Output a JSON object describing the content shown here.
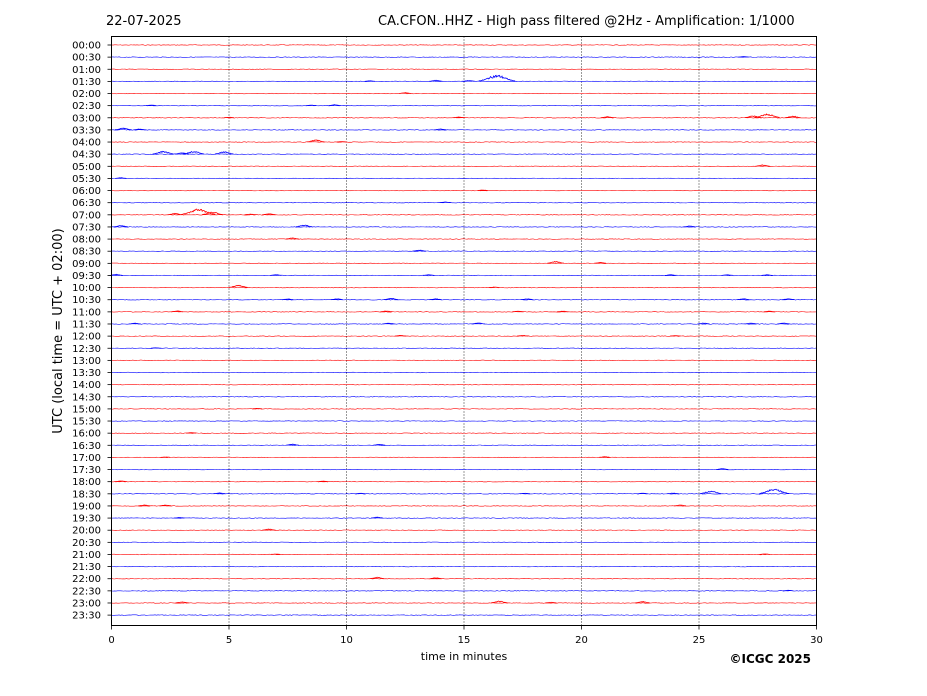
{
  "header": {
    "date": "22-07-2025",
    "title": "CA.CFON..HHZ - High pass filtered @2Hz - Amplification: 1/1000"
  },
  "footer": {
    "copyright": "©ICGC 2025"
  },
  "chart_data": {
    "type": "line",
    "title": "CA.CFON..HHZ - High pass filtered @2Hz - Amplification: 1/1000",
    "xlabel": "time in minutes",
    "ylabel": "UTC (local time = UTC + 02:00)",
    "xlim": [
      0,
      30
    ],
    "x_ticks": [
      0,
      5,
      10,
      15,
      20,
      25,
      30
    ],
    "grid": "vertical dotted at each 5 minutes",
    "colors": {
      "red": "#ff0000",
      "blue": "#0000ff"
    },
    "rows": [
      {
        "label": "00:00",
        "color": "red",
        "events": []
      },
      {
        "label": "00:30",
        "color": "blue",
        "events": [
          {
            "t": 26.9,
            "amp": 0.6
          }
        ]
      },
      {
        "label": "01:00",
        "color": "red",
        "events": []
      },
      {
        "label": "01:30",
        "color": "blue",
        "events": [
          {
            "t": 13.8,
            "amp": 1.2
          },
          {
            "t": 15.2,
            "amp": 1.0
          },
          {
            "t": 16.4,
            "amp": 6.5
          },
          {
            "t": 11.0,
            "amp": 0.6
          }
        ]
      },
      {
        "label": "02:00",
        "color": "red",
        "events": [
          {
            "t": 12.5,
            "amp": 1.0
          }
        ]
      },
      {
        "label": "02:30",
        "color": "blue",
        "events": [
          {
            "t": 1.7,
            "amp": 0.6
          },
          {
            "t": 8.5,
            "amp": 0.6
          },
          {
            "t": 9.5,
            "amp": 1.0
          }
        ]
      },
      {
        "label": "03:00",
        "color": "red",
        "events": [
          {
            "t": 5.0,
            "amp": 0.6
          },
          {
            "t": 14.8,
            "amp": 0.8
          },
          {
            "t": 21.1,
            "amp": 1.2
          },
          {
            "t": 27.3,
            "amp": 2.0
          },
          {
            "t": 27.9,
            "amp": 4.0
          },
          {
            "t": 29.0,
            "amp": 1.8
          }
        ]
      },
      {
        "label": "03:30",
        "color": "blue",
        "events": [
          {
            "t": 0.5,
            "amp": 2.0
          },
          {
            "t": 1.2,
            "amp": 1.0
          },
          {
            "t": 14.0,
            "amp": 1.0
          }
        ]
      },
      {
        "label": "04:00",
        "color": "red",
        "events": [
          {
            "t": 8.7,
            "amp": 2.2
          },
          {
            "t": 9.8,
            "amp": 0.6
          }
        ]
      },
      {
        "label": "04:30",
        "color": "blue",
        "events": [
          {
            "t": 2.2,
            "amp": 3.0
          },
          {
            "t": 3.0,
            "amp": 1.5
          },
          {
            "t": 3.5,
            "amp": 3.0
          },
          {
            "t": 4.8,
            "amp": 2.5
          }
        ]
      },
      {
        "label": "05:00",
        "color": "red",
        "events": [
          {
            "t": 27.7,
            "amp": 1.5
          }
        ]
      },
      {
        "label": "05:30",
        "color": "blue",
        "events": [
          {
            "t": 0.4,
            "amp": 0.8
          }
        ]
      },
      {
        "label": "06:00",
        "color": "red",
        "events": [
          {
            "t": 15.8,
            "amp": 0.6
          }
        ]
      },
      {
        "label": "06:30",
        "color": "blue",
        "events": [
          {
            "t": 14.2,
            "amp": 0.8
          }
        ]
      },
      {
        "label": "07:00",
        "color": "red",
        "events": [
          {
            "t": 2.7,
            "amp": 1.5
          },
          {
            "t": 3.7,
            "amp": 6.0
          },
          {
            "t": 4.3,
            "amp": 3.0
          },
          {
            "t": 6.7,
            "amp": 1.2
          },
          {
            "t": 5.9,
            "amp": 0.8
          }
        ]
      },
      {
        "label": "07:30",
        "color": "blue",
        "events": [
          {
            "t": 0.4,
            "amp": 1.5
          },
          {
            "t": 8.2,
            "amp": 2.0
          },
          {
            "t": 24.6,
            "amp": 1.0
          }
        ]
      },
      {
        "label": "08:00",
        "color": "red",
        "events": [
          {
            "t": 7.7,
            "amp": 1.2
          }
        ]
      },
      {
        "label": "08:30",
        "color": "blue",
        "events": [
          {
            "t": 13.1,
            "amp": 1.2
          }
        ]
      },
      {
        "label": "09:00",
        "color": "red",
        "events": [
          {
            "t": 18.9,
            "amp": 2.0
          },
          {
            "t": 20.8,
            "amp": 1.0
          }
        ]
      },
      {
        "label": "09:30",
        "color": "blue",
        "events": [
          {
            "t": 0.2,
            "amp": 1.2
          },
          {
            "t": 7.0,
            "amp": 0.8
          },
          {
            "t": 13.5,
            "amp": 0.8
          },
          {
            "t": 23.8,
            "amp": 0.8
          },
          {
            "t": 26.2,
            "amp": 0.8
          },
          {
            "t": 27.9,
            "amp": 0.8
          }
        ]
      },
      {
        "label": "10:00",
        "color": "red",
        "events": [
          {
            "t": 5.4,
            "amp": 2.5
          },
          {
            "t": 16.3,
            "amp": 0.6
          }
        ]
      },
      {
        "label": "10:30",
        "color": "blue",
        "events": [
          {
            "t": 7.5,
            "amp": 0.8
          },
          {
            "t": 9.6,
            "amp": 1.0
          },
          {
            "t": 11.9,
            "amp": 1.5
          },
          {
            "t": 13.8,
            "amp": 1.0
          },
          {
            "t": 17.7,
            "amp": 1.0
          },
          {
            "t": 26.9,
            "amp": 1.0
          },
          {
            "t": 28.8,
            "amp": 1.0
          }
        ]
      },
      {
        "label": "11:00",
        "color": "red",
        "events": [
          {
            "t": 2.8,
            "amp": 1.0
          },
          {
            "t": 11.7,
            "amp": 1.0
          },
          {
            "t": 17.3,
            "amp": 0.8
          },
          {
            "t": 19.2,
            "amp": 0.8
          },
          {
            "t": 28.0,
            "amp": 0.8
          }
        ]
      },
      {
        "label": "11:30",
        "color": "blue",
        "events": [
          {
            "t": 1.0,
            "amp": 0.8
          },
          {
            "t": 11.8,
            "amp": 1.0
          },
          {
            "t": 15.6,
            "amp": 1.2
          },
          {
            "t": 25.2,
            "amp": 1.0
          },
          {
            "t": 27.2,
            "amp": 1.0
          },
          {
            "t": 28.6,
            "amp": 1.0
          }
        ]
      },
      {
        "label": "12:00",
        "color": "red",
        "events": [
          {
            "t": 12.3,
            "amp": 0.8
          },
          {
            "t": 17.5,
            "amp": 0.8
          },
          {
            "t": 24.0,
            "amp": 0.6
          }
        ]
      },
      {
        "label": "12:30",
        "color": "blue",
        "events": [
          {
            "t": 1.9,
            "amp": 0.5
          }
        ]
      },
      {
        "label": "13:00",
        "color": "red",
        "events": []
      },
      {
        "label": "13:30",
        "color": "blue",
        "events": []
      },
      {
        "label": "14:00",
        "color": "red",
        "events": []
      },
      {
        "label": "14:30",
        "color": "blue",
        "events": []
      },
      {
        "label": "15:00",
        "color": "red",
        "events": [
          {
            "t": 6.2,
            "amp": 0.6
          }
        ]
      },
      {
        "label": "15:30",
        "color": "blue",
        "events": []
      },
      {
        "label": "16:00",
        "color": "red",
        "events": [
          {
            "t": 3.4,
            "amp": 0.6
          }
        ]
      },
      {
        "label": "16:30",
        "color": "blue",
        "events": [
          {
            "t": 7.7,
            "amp": 1.2
          },
          {
            "t": 11.4,
            "amp": 1.0
          }
        ]
      },
      {
        "label": "17:00",
        "color": "red",
        "events": [
          {
            "t": 2.3,
            "amp": 0.5
          },
          {
            "t": 21.0,
            "amp": 0.8
          }
        ]
      },
      {
        "label": "17:30",
        "color": "blue",
        "events": [
          {
            "t": 26.0,
            "amp": 1.0
          }
        ]
      },
      {
        "label": "18:00",
        "color": "red",
        "events": [
          {
            "t": 0.4,
            "amp": 0.8
          },
          {
            "t": 9.0,
            "amp": 0.6
          }
        ]
      },
      {
        "label": "18:30",
        "color": "blue",
        "events": [
          {
            "t": 4.6,
            "amp": 1.0
          },
          {
            "t": 10.6,
            "amp": 0.6
          },
          {
            "t": 17.6,
            "amp": 0.6
          },
          {
            "t": 22.6,
            "amp": 0.6
          },
          {
            "t": 23.9,
            "amp": 0.8
          },
          {
            "t": 25.5,
            "amp": 3.0
          },
          {
            "t": 28.2,
            "amp": 5.0
          }
        ]
      },
      {
        "label": "19:00",
        "color": "red",
        "events": [
          {
            "t": 1.4,
            "amp": 1.0
          },
          {
            "t": 2.3,
            "amp": 1.0
          },
          {
            "t": 24.2,
            "amp": 1.0
          }
        ]
      },
      {
        "label": "19:30",
        "color": "blue",
        "events": [
          {
            "t": 2.9,
            "amp": 0.6
          },
          {
            "t": 11.3,
            "amp": 1.0
          }
        ]
      },
      {
        "label": "20:00",
        "color": "red",
        "events": [
          {
            "t": 6.7,
            "amp": 1.2
          }
        ]
      },
      {
        "label": "20:30",
        "color": "blue",
        "events": []
      },
      {
        "label": "21:00",
        "color": "red",
        "events": [
          {
            "t": 7.0,
            "amp": 0.5
          },
          {
            "t": 27.8,
            "amp": 0.6
          }
        ]
      },
      {
        "label": "21:30",
        "color": "blue",
        "events": []
      },
      {
        "label": "22:00",
        "color": "red",
        "events": [
          {
            "t": 11.3,
            "amp": 1.5
          },
          {
            "t": 13.8,
            "amp": 1.0
          }
        ]
      },
      {
        "label": "22:30",
        "color": "blue",
        "events": [
          {
            "t": 28.8,
            "amp": 0.6
          }
        ]
      },
      {
        "label": "23:00",
        "color": "red",
        "events": [
          {
            "t": 3.0,
            "amp": 1.2
          },
          {
            "t": 16.5,
            "amp": 2.0
          },
          {
            "t": 18.7,
            "amp": 0.8
          },
          {
            "t": 22.6,
            "amp": 1.5
          }
        ]
      },
      {
        "label": "23:30",
        "color": "blue",
        "events": []
      }
    ]
  }
}
